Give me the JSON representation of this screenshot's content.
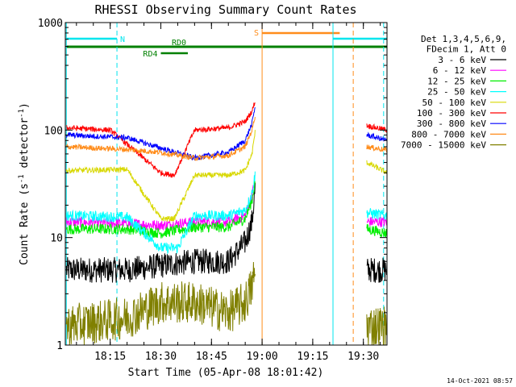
{
  "window": {
    "title": "RHESSI Observing Summary Count Rates",
    "timestamp": "14-Oct-2021 08:57"
  },
  "colors": {
    "background": "#ffffff",
    "axis": "#000000",
    "cyan_line": "#00e5ee",
    "orange_line": "#ff8c1a",
    "green_bar": "#008000"
  },
  "chart_data": {
    "type": "line",
    "title": "RHESSI Observing Summary Count Rates",
    "xlabel": "Start Time (05-Apr-08 18:01:42)",
    "ylabel_parts": [
      "Count Rate (s",
      "-1",
      " detector",
      "-1",
      ")"
    ],
    "y_scale": "log",
    "xlim": [
      "18:01:42",
      "19:37:00"
    ],
    "ylim": [
      1,
      1000
    ],
    "x_ticks": [
      "18:15",
      "18:30",
      "18:45",
      "19:00",
      "19:15",
      "19:30"
    ],
    "y_ticks": [
      "1",
      "10",
      "100",
      "1000"
    ],
    "grid": false,
    "legend_placement": "right",
    "legend_header": [
      "Det 1,3,4,5,6,9,",
      "FDecim 1, Att 0"
    ],
    "series": [
      {
        "name": "3 - 6 keV",
        "color": "#000000",
        "segments": [
          {
            "t": [
              "18:02",
              "18:20",
              "18:30",
              "18:40",
              "18:50",
              "18:55",
              "18:57",
              "18:58"
            ],
            "v": [
              5.0,
              5.0,
              5.5,
              6.0,
              6.0,
              9.0,
              14.0,
              30.0
            ]
          },
          {
            "t": [
              "19:31",
              "19:37"
            ],
            "v": [
              5.0,
              5.0
            ]
          }
        ]
      },
      {
        "name": "6 - 12 keV",
        "color": "#ff00ff",
        "segments": [
          {
            "t": [
              "18:02",
              "18:20",
              "18:30",
              "18:40",
              "18:50",
              "18:55",
              "18:57",
              "18:58"
            ],
            "v": [
              14.0,
              13.5,
              13.0,
              14.0,
              14.0,
              16.0,
              24.0,
              38.0
            ]
          },
          {
            "t": [
              "19:31",
              "19:37"
            ],
            "v": [
              14.0,
              14.0
            ]
          }
        ]
      },
      {
        "name": "12 - 25 keV",
        "color": "#00ee00",
        "segments": [
          {
            "t": [
              "18:02",
              "18:20",
              "18:30",
              "18:40",
              "18:50",
              "18:55",
              "18:57",
              "18:58"
            ],
            "v": [
              12.0,
              12.0,
              11.0,
              12.5,
              12.5,
              15.0,
              22.0,
              35.0
            ]
          },
          {
            "t": [
              "19:31",
              "19:37"
            ],
            "v": [
              12.0,
              11.0
            ]
          }
        ]
      },
      {
        "name": "25 - 50 keV",
        "color": "#00ffff",
        "segments": [
          {
            "t": [
              "18:02",
              "18:20",
              "18:30",
              "18:35",
              "18:40",
              "18:50",
              "18:55",
              "18:57",
              "18:58"
            ],
            "v": [
              16.0,
              15.5,
              8.0,
              8.0,
              16.0,
              16.0,
              18.0,
              26.0,
              40.0
            ]
          },
          {
            "t": [
              "19:31",
              "19:37"
            ],
            "v": [
              17.0,
              16.0
            ]
          }
        ]
      },
      {
        "name": "50 - 100 keV",
        "color": "#d8d800",
        "segments": [
          {
            "t": [
              "18:02",
              "18:20",
              "18:30",
              "18:34",
              "18:40",
              "18:50",
              "18:55",
              "18:57",
              "18:58"
            ],
            "v": [
              42.0,
              43.0,
              15.0,
              15.0,
              38.0,
              38.0,
              42.0,
              60.0,
              100.0
            ]
          },
          {
            "t": [
              "19:31",
              "19:37"
            ],
            "v": [
              50.0,
              40.0
            ]
          }
        ]
      },
      {
        "name": "100 - 300 keV",
        "color": "#ff0000",
        "segments": [
          {
            "t": [
              "18:02",
              "18:15",
              "18:30",
              "18:34",
              "18:40",
              "18:50",
              "18:55",
              "18:57",
              "18:58"
            ],
            "v": [
              105.0,
              100.0,
              40.0,
              38.0,
              100.0,
              105.0,
              120.0,
              150.0,
              190.0
            ]
          },
          {
            "t": [
              "19:31",
              "19:37"
            ],
            "v": [
              110.0,
              100.0
            ]
          }
        ]
      },
      {
        "name": "300 - 800 keV",
        "color": "#0000ff",
        "segments": [
          {
            "t": [
              "18:02",
              "18:20",
              "18:30",
              "18:40",
              "18:50",
              "18:55",
              "18:57",
              "18:58"
            ],
            "v": [
              90.0,
              85.0,
              68.0,
              55.0,
              62.0,
              80.0,
              115.0,
              170.0
            ]
          },
          {
            "t": [
              "19:31",
              "19:37"
            ],
            "v": [
              90.0,
              80.0
            ]
          }
        ]
      },
      {
        "name": "800 - 7000 keV",
        "color": "#ff8c1a",
        "segments": [
          {
            "t": [
              "18:02",
              "18:20",
              "18:30",
              "18:40",
              "18:50",
              "18:55",
              "18:57",
              "18:58"
            ],
            "v": [
              70.0,
              66.0,
              62.0,
              55.0,
              58.0,
              70.0,
              100.0,
              140.0
            ]
          },
          {
            "t": [
              "19:31",
              "19:37"
            ],
            "v": [
              70.0,
              65.0
            ]
          }
        ]
      },
      {
        "name": "7000 - 15000 keV",
        "color": "#808000",
        "segments": [
          {
            "t": [
              "18:02",
              "18:20",
              "18:30",
              "18:40",
              "18:50",
              "18:55",
              "18:57",
              "18:58"
            ],
            "v": [
              1.5,
              1.8,
              2.5,
              2.5,
              2.0,
              2.5,
              3.5,
              5.0
            ]
          },
          {
            "t": [
              "19:31",
              "19:37"
            ],
            "v": [
              1.5,
              1.5
            ]
          }
        ]
      }
    ],
    "annotations": [
      {
        "label": "N",
        "color": "#00e5ee",
        "t_start": "18:02",
        "t_end": "18:17"
      },
      {
        "label": "N",
        "color": "#00e5ee",
        "t_start": "19:21",
        "t_end": "19:37"
      },
      {
        "label": "S",
        "color": "#ff8c1a",
        "t_start": "19:00",
        "t_end": "19:23"
      },
      {
        "label": "RD0",
        "color": "#008000",
        "t_start": "18:02",
        "t_end": "19:37"
      },
      {
        "label": "RD4",
        "color": "#008000",
        "t_start": "18:30",
        "t_end": "18:38"
      }
    ],
    "vertical_markers": [
      {
        "t": "18:02",
        "color": "#00e5ee",
        "style": "solid"
      },
      {
        "t": "18:17",
        "color": "#00e5ee",
        "style": "dashed"
      },
      {
        "t": "19:00",
        "color": "#ff8c1a",
        "style": "solid"
      },
      {
        "t": "19:21",
        "color": "#00e5ee",
        "style": "solid"
      },
      {
        "t": "19:27",
        "color": "#ff8c1a",
        "style": "dashed"
      },
      {
        "t": "19:36",
        "color": "#00e5ee",
        "style": "dashed"
      }
    ]
  }
}
